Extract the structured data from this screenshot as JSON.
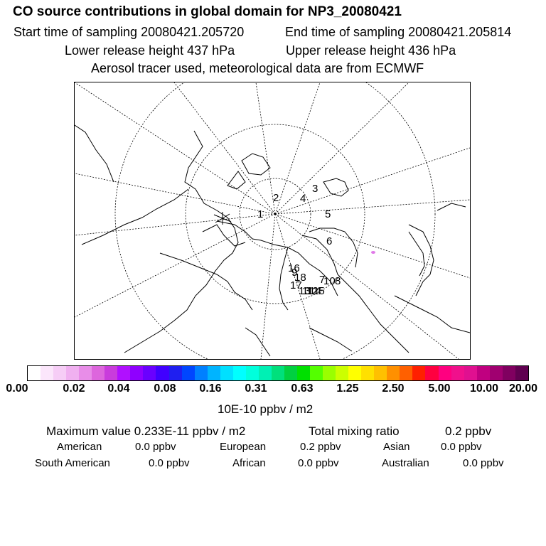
{
  "header": {
    "title": "CO  source contributions in global domain for NP3_20080421",
    "start_time": "Start time of sampling 20080421.205720",
    "end_time": "End time of sampling 20080421.205814",
    "lower_height": "Lower release height  437 hPa",
    "upper_height": "Upper release height  436 hPa",
    "tracer_note": "Aerosol tracer used, meteorological data are from ECMWF"
  },
  "map": {
    "projection": "north-polar-stereographic",
    "track_labels": [
      "1",
      "2",
      "3",
      "4",
      "5",
      "6",
      "7",
      "8",
      "9",
      "10",
      "11",
      "12",
      "13",
      "14",
      "15",
      "16",
      "17",
      "18"
    ],
    "marker": "release-point-asterisk",
    "contribution_color": "#e07ae8"
  },
  "colorbar": {
    "colors": [
      "#ffffff",
      "#fbe6fb",
      "#f6cdf6",
      "#f0b0f0",
      "#e88de8",
      "#dd66dd",
      "#c93cdc",
      "#b010ff",
      "#8f00ff",
      "#6a00ff",
      "#4000ff",
      "#1f1ff0",
      "#0046ff",
      "#0080ff",
      "#00b4ff",
      "#00e0ff",
      "#00ffff",
      "#00ffdc",
      "#00f0b4",
      "#00e07c",
      "#00d040",
      "#00e000",
      "#54ff00",
      "#9aff00",
      "#ccff00",
      "#ffff00",
      "#ffe000",
      "#ffc000",
      "#ff9000",
      "#ff6000",
      "#ff2000",
      "#ff0040",
      "#ff0080",
      "#f0108c",
      "#e01090",
      "#c00080",
      "#a00070",
      "#800060",
      "#600050"
    ],
    "tick_labels": [
      "0.00",
      "0.02",
      "0.04",
      "0.08",
      "0.16",
      "0.31",
      "0.63",
      "1.25",
      "2.50",
      "5.00",
      "10.00",
      "20.00"
    ],
    "unit": "10E-10 ppbv / m2"
  },
  "stats": {
    "max_value": "Maximum value  0.233E-11 ppbv / m2",
    "total_mixing": "Total mixing ratio",
    "total_value": "0.2 ppbv"
  },
  "regions": [
    {
      "name": "American",
      "value": "0.0 ppbv"
    },
    {
      "name": "European",
      "value": "0.2 ppbv"
    },
    {
      "name": "Asian",
      "value": "0.0 ppbv"
    },
    {
      "name": "South American",
      "value": "0.0 ppbv"
    },
    {
      "name": "African",
      "value": "0.0 ppbv"
    },
    {
      "name": "Australian",
      "value": "0.0 ppbv"
    }
  ]
}
